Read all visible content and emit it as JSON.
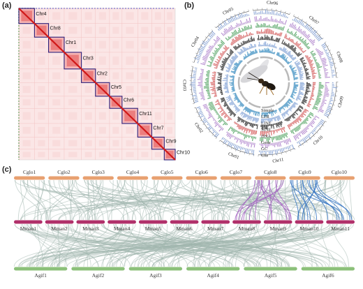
{
  "panels": {
    "a": {
      "label": "(a)"
    },
    "b": {
      "label": "(b)"
    },
    "c": {
      "label": "(c)"
    }
  },
  "heatmap": {
    "chromosomes": [
      "Chr4",
      "Chr8",
      "Chr1",
      "Chr3",
      "Chr2",
      "Chr5",
      "Chr6",
      "Chr11",
      "Chr7",
      "Chr9",
      "Chr10"
    ],
    "relative_sizes": [
      10,
      9,
      10,
      11,
      9,
      9,
      8,
      10,
      9,
      8,
      7
    ]
  },
  "circos": {
    "chromosomes": [
      "Chr06",
      "Chr07",
      "Chr08",
      "Chr09",
      "Chr10",
      "Chr11",
      "Chr01",
      "Chr02",
      "Chr03",
      "Chr04",
      "Chr05"
    ],
    "tracks": [
      "Simple",
      "LTR",
      "LINE",
      "SINE",
      "DNA",
      "Gene",
      "GC",
      "Chr"
    ],
    "track_colors": [
      "#8fa9d8",
      "#b58cd0",
      "#5aa86a",
      "#d86a6a",
      "#444444",
      "#9fb8e0",
      "#6aa9d0",
      "#c9a46a"
    ]
  },
  "synteny": {
    "top_row": {
      "labels": [
        "Cglo1",
        "Cglo2",
        "Cglo3",
        "Cglo4",
        "Cglo5",
        "Cglo6",
        "Cglo7",
        "Cglo8",
        "Cglo9",
        "Cglo10"
      ],
      "color": "#e8a070"
    },
    "mid_row": {
      "labels": [
        "Mman1",
        "Mman2",
        "Mman3",
        "Mman4",
        "Mman5",
        "Mman6",
        "Mman7",
        "Mman8",
        "Mman9",
        "Mman10",
        "Mman11"
      ],
      "color": "#b0306a"
    },
    "bottom_row": {
      "labels": [
        "Agif1",
        "Agif2",
        "Agif3",
        "Agif4",
        "Agif5",
        "Agif6"
      ],
      "color": "#8cc07a"
    },
    "link_color": "#9fb5ad",
    "highlight_purple": "#a260c0",
    "highlight_blue": "#3070c0"
  }
}
